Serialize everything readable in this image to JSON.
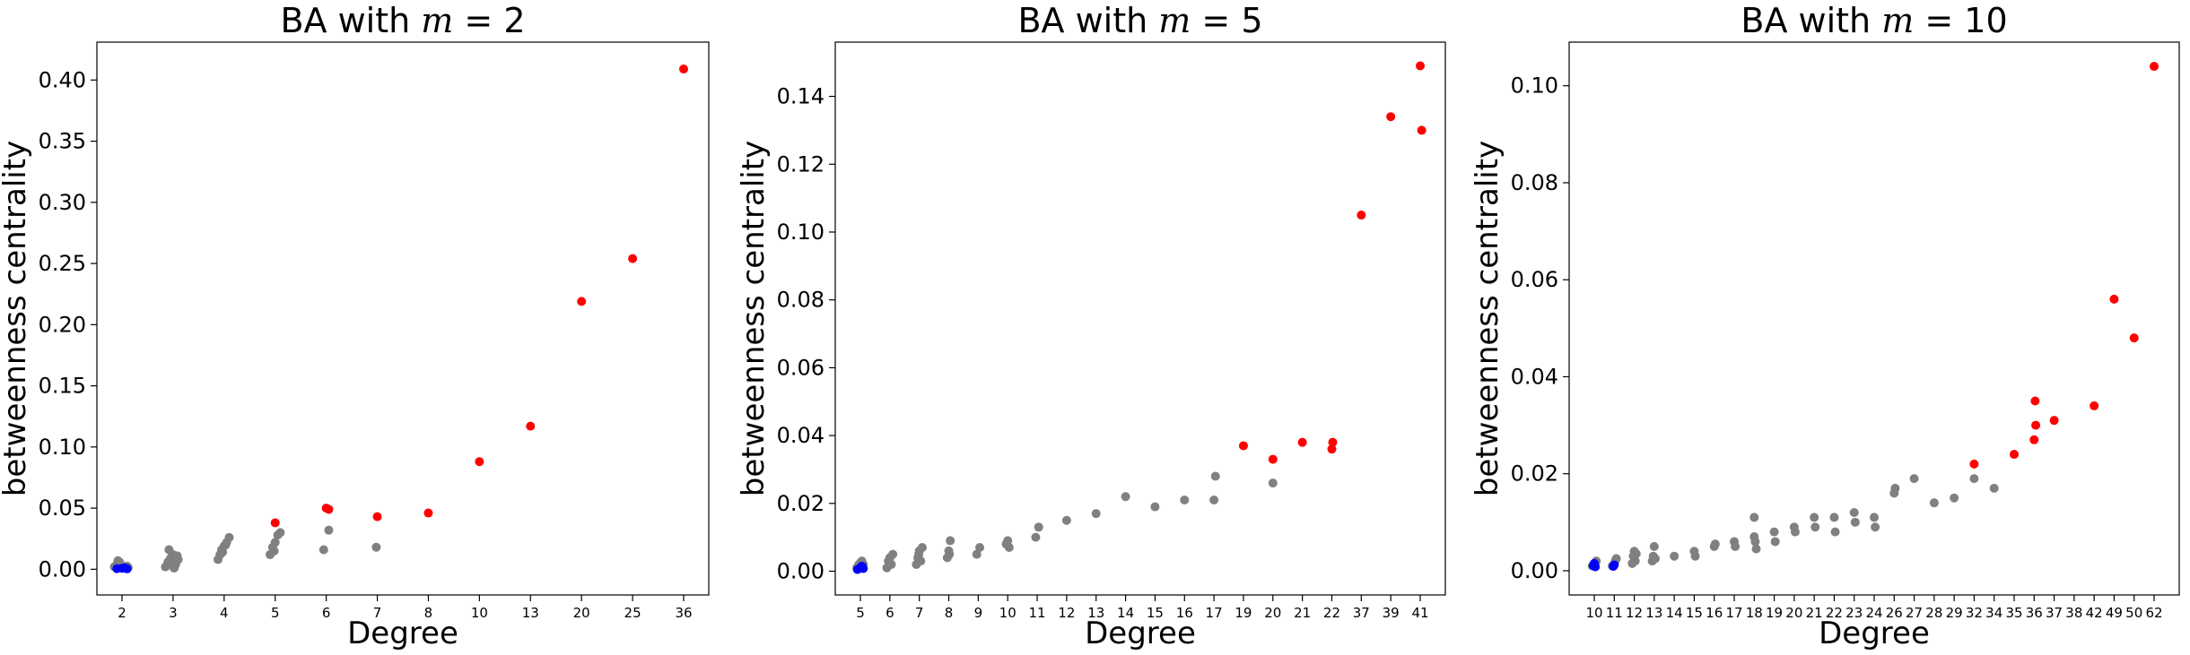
{
  "colors": {
    "hub": "#ff0000",
    "middle": "#808080",
    "low": "#0000ff"
  },
  "chart_data": [
    {
      "type": "scatter",
      "title": "BA with m = 2",
      "title_prefix": "BA with ",
      "title_var": "m",
      "title_suffix": " = 2",
      "xlabel": "Degree",
      "ylabel": "betweenness centrality",
      "categories": [
        "2",
        "3",
        "4",
        "5",
        "6",
        "7",
        "8",
        "10",
        "13",
        "20",
        "25",
        "36"
      ],
      "ylim": [
        -0.021,
        0.431
      ],
      "yticks": [
        0.0,
        0.05,
        0.1,
        0.15,
        0.2,
        0.25,
        0.3,
        0.35,
        0.4
      ],
      "ytick_labels": [
        "0.00",
        "0.05",
        "0.10",
        "0.15",
        "0.20",
        "0.25",
        "0.30",
        "0.35",
        "0.40"
      ],
      "series": [
        {
          "color": "low",
          "points": [
            [
              -0.1,
              0.0005
            ],
            [
              0.0,
              0.0008
            ],
            [
              0.1,
              0.0004
            ],
            [
              0.05,
              0.0012
            ]
          ]
        },
        {
          "color": "middle",
          "points": [
            [
              -0.15,
              0.002
            ],
            [
              -0.1,
              0.004
            ],
            [
              -0.05,
              0.006
            ],
            [
              0.0,
              0.003
            ],
            [
              0.05,
              0.001
            ],
            [
              0.1,
              0.0025
            ],
            [
              0.12,
              0.0015
            ],
            [
              -0.08,
              0.007
            ],
            [
              0.85,
              0.002
            ],
            [
              0.9,
              0.006
            ],
            [
              0.95,
              0.009
            ],
            [
              1.0,
              0.012
            ],
            [
              1.05,
              0.004
            ],
            [
              1.1,
              0.008
            ],
            [
              0.92,
              0.016
            ],
            [
              1.02,
              0.001
            ],
            [
              1.08,
              0.011
            ],
            [
              0.97,
              0.005
            ],
            [
              1.88,
              0.008
            ],
            [
              1.92,
              0.012
            ],
            [
              1.95,
              0.016
            ],
            [
              2.0,
              0.019
            ],
            [
              2.05,
              0.022
            ],
            [
              2.1,
              0.026
            ],
            [
              1.97,
              0.014
            ],
            [
              2.03,
              0.02
            ],
            [
              2.9,
              0.012
            ],
            [
              2.95,
              0.018
            ],
            [
              3.0,
              0.022
            ],
            [
              3.05,
              0.028
            ],
            [
              3.1,
              0.03
            ],
            [
              2.98,
              0.015
            ],
            [
              3.95,
              0.016
            ],
            [
              4.05,
              0.032
            ],
            [
              4.98,
              0.018
            ]
          ]
        },
        {
          "color": "hub",
          "points": [
            [
              3.0,
              0.038
            ],
            [
              4.0,
              0.05
            ],
            [
              4.05,
              0.049
            ],
            [
              5.0,
              0.043
            ],
            [
              6.0,
              0.046
            ],
            [
              7.0,
              0.088
            ],
            [
              8.0,
              0.117
            ],
            [
              9.0,
              0.219
            ],
            [
              10.0,
              0.254
            ],
            [
              11.0,
              0.409
            ]
          ]
        }
      ]
    },
    {
      "type": "scatter",
      "title": "BA with m = 5",
      "title_prefix": "BA with ",
      "title_var": "m",
      "title_suffix": " = 5",
      "xlabel": "Degree",
      "ylabel": "betweenness centrality",
      "categories": [
        "5",
        "6",
        "7",
        "8",
        "9",
        "10",
        "11",
        "12",
        "13",
        "14",
        "15",
        "16",
        "17",
        "19",
        "20",
        "21",
        "22",
        "37",
        "39",
        "41"
      ],
      "ylim": [
        -0.007,
        0.156
      ],
      "yticks": [
        0.0,
        0.02,
        0.04,
        0.06,
        0.08,
        0.1,
        0.12,
        0.14
      ],
      "ytick_labels": [
        "0.00",
        "0.02",
        "0.04",
        "0.06",
        "0.08",
        "0.10",
        "0.12",
        "0.14"
      ],
      "series": [
        {
          "color": "low",
          "points": [
            [
              -0.1,
              0.0005
            ],
            [
              0.0,
              0.001
            ],
            [
              0.1,
              0.0008
            ],
            [
              0.05,
              0.0015
            ]
          ]
        },
        {
          "color": "middle",
          "points": [
            [
              -0.12,
              0.001
            ],
            [
              -0.05,
              0.002
            ],
            [
              0.05,
              0.003
            ],
            [
              0.1,
              0.002
            ],
            [
              0.0,
              0.0025
            ],
            [
              0.9,
              0.001
            ],
            [
              0.95,
              0.003
            ],
            [
              1.0,
              0.004
            ],
            [
              1.05,
              0.002
            ],
            [
              1.1,
              0.005
            ],
            [
              1.9,
              0.002
            ],
            [
              1.95,
              0.004
            ],
            [
              2.0,
              0.006
            ],
            [
              2.05,
              0.003
            ],
            [
              2.1,
              0.007
            ],
            [
              1.98,
              0.005
            ],
            [
              2.95,
              0.004
            ],
            [
              3.0,
              0.006
            ],
            [
              3.05,
              0.009
            ],
            [
              3.02,
              0.005
            ],
            [
              3.95,
              0.005
            ],
            [
              4.05,
              0.007
            ],
            [
              4.95,
              0.008
            ],
            [
              5.0,
              0.009
            ],
            [
              5.05,
              0.007
            ],
            [
              5.95,
              0.01
            ],
            [
              6.05,
              0.013
            ],
            [
              7.0,
              0.015
            ],
            [
              8.0,
              0.017
            ],
            [
              9.0,
              0.022
            ],
            [
              10.0,
              0.019
            ],
            [
              11.0,
              0.021
            ],
            [
              12.0,
              0.021
            ],
            [
              12.05,
              0.028
            ],
            [
              14.0,
              0.026
            ]
          ]
        },
        {
          "color": "hub",
          "points": [
            [
              13.0,
              0.037
            ],
            [
              14.0,
              0.033
            ],
            [
              15.0,
              0.038
            ],
            [
              16.0,
              0.036
            ],
            [
              16.03,
              0.038
            ],
            [
              17.0,
              0.105
            ],
            [
              18.0,
              0.134
            ],
            [
              19.0,
              0.149
            ],
            [
              19.05,
              0.13
            ]
          ]
        }
      ]
    },
    {
      "type": "scatter",
      "title": "BA with m = 10",
      "title_prefix": "BA with ",
      "title_var": "m",
      "title_suffix": " = 10",
      "xlabel": "Degree",
      "ylabel": "betweenness centrality",
      "categories": [
        "10",
        "11",
        "12",
        "13",
        "14",
        "15",
        "16",
        "17",
        "18",
        "19",
        "20",
        "21",
        "22",
        "23",
        "24",
        "26",
        "27",
        "28",
        "29",
        "32",
        "34",
        "35",
        "36",
        "37",
        "38",
        "42",
        "49",
        "50",
        "62"
      ],
      "ylim": [
        -0.005,
        0.109
      ],
      "yticks": [
        0.0,
        0.02,
        0.04,
        0.06,
        0.08,
        0.1
      ],
      "ytick_labels": [
        "0.00",
        "0.02",
        "0.04",
        "0.06",
        "0.08",
        "0.10"
      ],
      "series": [
        {
          "color": "low",
          "points": [
            [
              -0.05,
              0.001
            ],
            [
              0.0,
              0.0015
            ],
            [
              0.05,
              0.0008
            ],
            [
              0.95,
              0.0009
            ],
            [
              1.0,
              0.0012
            ]
          ]
        },
        {
          "color": "middle",
          "points": [
            [
              -0.1,
              0.001
            ],
            [
              0.1,
              0.002
            ],
            [
              0.05,
              0.0015
            ],
            [
              0.9,
              0.001
            ],
            [
              1.05,
              0.002
            ],
            [
              1.1,
              0.0025
            ],
            [
              1.9,
              0.0015
            ],
            [
              1.95,
              0.003
            ],
            [
              2.0,
              0.004
            ],
            [
              2.05,
              0.002
            ],
            [
              2.1,
              0.0035
            ],
            [
              2.9,
              0.002
            ],
            [
              2.95,
              0.003
            ],
            [
              3.0,
              0.005
            ],
            [
              3.05,
              0.0025
            ],
            [
              4.0,
              0.003
            ],
            [
              5.0,
              0.004
            ],
            [
              5.05,
              0.003
            ],
            [
              6.0,
              0.005
            ],
            [
              6.05,
              0.0055
            ],
            [
              7.0,
              0.006
            ],
            [
              7.05,
              0.005
            ],
            [
              8.0,
              0.007
            ],
            [
              8.05,
              0.006
            ],
            [
              8.0,
              0.011
            ],
            [
              8.1,
              0.0045
            ],
            [
              9.0,
              0.008
            ],
            [
              9.05,
              0.006
            ],
            [
              10.0,
              0.009
            ],
            [
              10.05,
              0.008
            ],
            [
              11.0,
              0.011
            ],
            [
              11.05,
              0.009
            ],
            [
              12.0,
              0.011
            ],
            [
              12.05,
              0.008
            ],
            [
              13.0,
              0.012
            ],
            [
              13.05,
              0.01
            ],
            [
              14.0,
              0.011
            ],
            [
              14.05,
              0.009
            ],
            [
              15.0,
              0.016
            ],
            [
              15.05,
              0.017
            ],
            [
              16.0,
              0.019
            ],
            [
              17.0,
              0.014
            ],
            [
              18.0,
              0.015
            ],
            [
              19.0,
              0.019
            ],
            [
              20.0,
              0.017
            ]
          ]
        },
        {
          "color": "hub",
          "points": [
            [
              19.0,
              0.022
            ],
            [
              21.0,
              0.024
            ],
            [
              22.0,
              0.027
            ],
            [
              22.05,
              0.035
            ],
            [
              22.08,
              0.03
            ],
            [
              23.0,
              0.031
            ],
            [
              25.0,
              0.034
            ],
            [
              26.0,
              0.056
            ],
            [
              27.0,
              0.048
            ],
            [
              28.0,
              0.104
            ]
          ]
        }
      ]
    }
  ]
}
